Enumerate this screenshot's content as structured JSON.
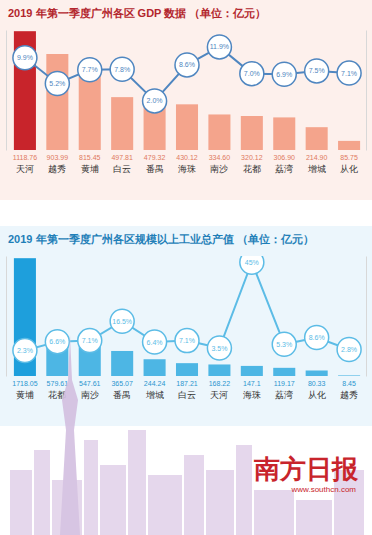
{
  "chart_data": [
    {
      "type": "bar",
      "title": "2019 年第一季度广州各区 GDP 数据 （单位：亿元）",
      "categories": [
        "天河",
        "越秀",
        "黄埔",
        "白云",
        "番禺",
        "海珠",
        "南沙",
        "花都",
        "荔湾",
        "增城",
        "从化"
      ],
      "ylim": [
        0,
        1130
      ],
      "y2lim": [
        -7,
        15
      ],
      "tick_labels": "x",
      "data_labels": true,
      "series": [
        {
          "type": "bar",
          "colors": [
            "#c8242b",
            "#f4a48c",
            "#f4a48c",
            "#f4a48c",
            "#f4a48c",
            "#f4a48c",
            "#f4a48c",
            "#f4a48c",
            "#f4a48c",
            "#f4a48c",
            "#f4a48c"
          ],
          "values": [
            1118.76,
            903.99,
            815.45,
            497.81,
            479.32,
            430.12,
            334.6,
            320.12,
            306.9,
            214.9,
            85.75
          ],
          "value_labels": [
            "1118.76",
            "903.99",
            "815.45",
            "497.81",
            "479.32",
            "430.12",
            "334.60",
            "320.12",
            "306.90",
            "214.90",
            "85.75"
          ]
        },
        {
          "type": "line",
          "axis": "y2",
          "color": "#4f86c0",
          "marker": "circle",
          "values": [
            9.9,
            5.2,
            7.7,
            7.8,
            2.0,
            8.6,
            11.9,
            7.0,
            6.9,
            7.5,
            7.1
          ],
          "value_labels": [
            "9.9%",
            "5.2%",
            "7.7%",
            "7.8%",
            "2.0%",
            "8.6%",
            "11.9%",
            "7.0%",
            "6.9%",
            "7.5%",
            "7.1%"
          ]
        }
      ]
    },
    {
      "type": "bar",
      "title": "2019 年第一季度广州各区规模以上工业总产值 （单位：亿元）",
      "categories": [
        "黄埔",
        "花都",
        "南沙",
        "番禺",
        "增城",
        "白云",
        "天河",
        "海珠",
        "荔湾",
        "从化",
        "越秀"
      ],
      "ylim": [
        0,
        1750
      ],
      "y2lim": [
        -10,
        48
      ],
      "tick_labels": "x",
      "data_labels": true,
      "series": [
        {
          "type": "bar",
          "colors": [
            "#1e9fdc",
            "#4db6e4",
            "#4db6e4",
            "#4db6e4",
            "#4db6e4",
            "#4db6e4",
            "#4db6e4",
            "#4db6e4",
            "#4db6e4",
            "#4db6e4",
            "#4db6e4"
          ],
          "values": [
            1718.05,
            579.61,
            547.61,
            365.07,
            244.24,
            187.21,
            168.22,
            147.1,
            119.17,
            80.33,
            8.45
          ],
          "value_labels": [
            "1718.05",
            "579.61",
            "547.61",
            "365.07",
            "244.24",
            "187.21",
            "168.22",
            "147.1",
            "119.17",
            "80.33",
            "8.45"
          ]
        },
        {
          "type": "line",
          "axis": "y2",
          "color": "#5cbce6",
          "marker": "circle",
          "values": [
            2.3,
            6.6,
            7.1,
            16.5,
            6.4,
            7.1,
            3.5,
            45,
            5.3,
            8.6,
            2.8
          ],
          "value_labels": [
            "2.3%",
            "6.6%",
            "7.1%",
            "16.5%",
            "6.4%",
            "7.1%",
            "3.5%",
            "45%",
            "5.3%",
            "8.6%",
            "2.8%"
          ]
        }
      ]
    }
  ],
  "footer": {
    "brand": "南方日报",
    "url": "www.southcn.com"
  }
}
